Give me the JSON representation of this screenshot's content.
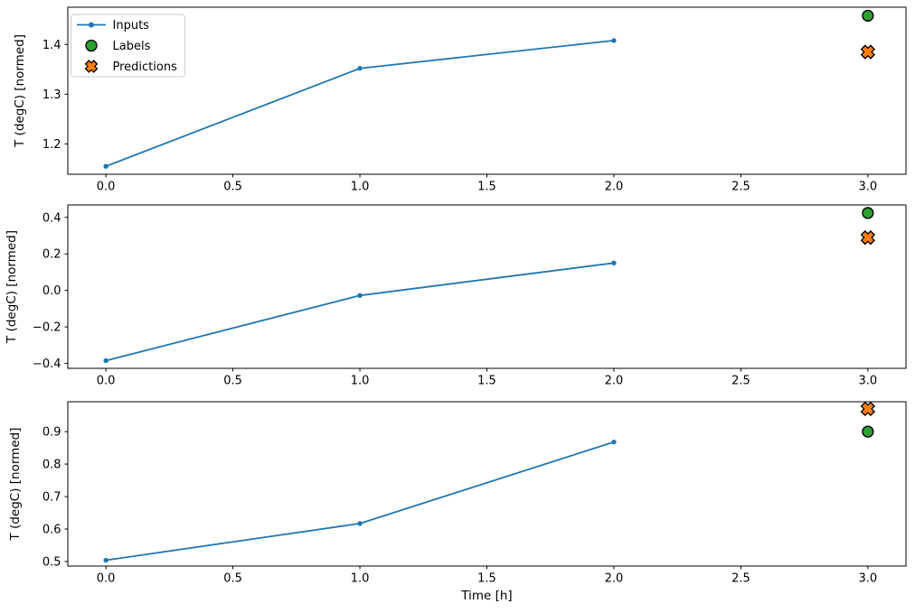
{
  "figure": {
    "background": "#ffffff",
    "xlabel": "Time [h]"
  },
  "colors": {
    "inputs": "#1f77b4",
    "labels": "#2ca02c",
    "predictions": "#ff7f0e",
    "marker_edge": "#000000",
    "spine": "#000000",
    "legend_border": "#cccccc"
  },
  "legend": {
    "position": "upper-left",
    "items": [
      {
        "label": "Inputs",
        "marker": "line-dot",
        "color": "#1f77b4"
      },
      {
        "label": "Labels",
        "marker": "circle",
        "color": "#2ca02c",
        "edge": "#000000"
      },
      {
        "label": "Predictions",
        "marker": "X",
        "color": "#ff7f0e",
        "edge": "#000000"
      }
    ]
  },
  "chart_data": [
    {
      "type": "line",
      "title": "",
      "xlabel": "",
      "ylabel": "T (degC) [normed]",
      "xlim": [
        -0.15,
        3.15
      ],
      "ylim": [
        1.139,
        1.475
      ],
      "grid": false,
      "x_ticks": {
        "values": [
          0,
          0.5,
          1,
          1.5,
          2,
          2.5,
          3
        ],
        "labels": [
          "0.0",
          "0.5",
          "1.0",
          "1.5",
          "2.0",
          "2.5",
          "3.0"
        ]
      },
      "y_ticks": {
        "values": [
          1.2,
          1.3,
          1.4
        ],
        "labels": [
          "1.2",
          "1.3",
          "1.4"
        ]
      },
      "series": [
        {
          "name": "Inputs",
          "kind": "line",
          "marker": "dot",
          "color": "#1f77b4",
          "x": [
            0,
            1,
            2
          ],
          "y": [
            1.155,
            1.352,
            1.408
          ]
        },
        {
          "name": "Labels",
          "kind": "scatter",
          "marker": "circle",
          "color": "#2ca02c",
          "edge": "#000000",
          "x": [
            3
          ],
          "y": [
            1.458
          ]
        },
        {
          "name": "Predictions",
          "kind": "scatter",
          "marker": "X",
          "color": "#ff7f0e",
          "edge": "#000000",
          "x": [
            3
          ],
          "y": [
            1.385
          ]
        }
      ]
    },
    {
      "type": "line",
      "title": "",
      "xlabel": "",
      "ylabel": "T (degC) [normed]",
      "xlim": [
        -0.15,
        3.15
      ],
      "ylim": [
        -0.427,
        0.468
      ],
      "grid": false,
      "x_ticks": {
        "values": [
          0,
          0.5,
          1,
          1.5,
          2,
          2.5,
          3
        ],
        "labels": [
          "0.0",
          "0.5",
          "1.0",
          "1.5",
          "2.0",
          "2.5",
          "3.0"
        ]
      },
      "y_ticks": {
        "values": [
          -0.4,
          -0.2,
          0.0,
          0.2,
          0.4
        ],
        "labels": [
          "−0.4",
          "−0.2",
          "0.0",
          "0.2",
          "0.4"
        ]
      },
      "series": [
        {
          "name": "Inputs",
          "kind": "line",
          "marker": "dot",
          "color": "#1f77b4",
          "x": [
            0,
            1,
            2
          ],
          "y": [
            -0.385,
            -0.028,
            0.15
          ]
        },
        {
          "name": "Labels",
          "kind": "scatter",
          "marker": "circle",
          "color": "#2ca02c",
          "edge": "#000000",
          "x": [
            3
          ],
          "y": [
            0.424
          ]
        },
        {
          "name": "Predictions",
          "kind": "scatter",
          "marker": "X",
          "color": "#ff7f0e",
          "edge": "#000000",
          "x": [
            3
          ],
          "y": [
            0.289
          ]
        }
      ]
    },
    {
      "type": "line",
      "title": "",
      "xlabel": "Time [h]",
      "ylabel": "T (degC) [normed]",
      "xlim": [
        -0.15,
        3.15
      ],
      "ylim": [
        0.486,
        0.992
      ],
      "grid": false,
      "x_ticks": {
        "values": [
          0,
          0.5,
          1,
          1.5,
          2,
          2.5,
          3
        ],
        "labels": [
          "0.0",
          "0.5",
          "1.0",
          "1.5",
          "2.0",
          "2.5",
          "3.0"
        ]
      },
      "y_ticks": {
        "values": [
          0.5,
          0.6,
          0.7,
          0.8,
          0.9
        ],
        "labels": [
          "0.5",
          "0.6",
          "0.7",
          "0.8",
          "0.9"
        ]
      },
      "series": [
        {
          "name": "Inputs",
          "kind": "line",
          "marker": "dot",
          "color": "#1f77b4",
          "x": [
            0,
            1,
            2
          ],
          "y": [
            0.504,
            0.617,
            0.868
          ]
        },
        {
          "name": "Labels",
          "kind": "scatter",
          "marker": "circle",
          "color": "#2ca02c",
          "edge": "#000000",
          "x": [
            3
          ],
          "y": [
            0.9
          ]
        },
        {
          "name": "Predictions",
          "kind": "scatter",
          "marker": "X",
          "color": "#ff7f0e",
          "edge": "#000000",
          "x": [
            3
          ],
          "y": [
            0.97
          ]
        }
      ]
    }
  ]
}
